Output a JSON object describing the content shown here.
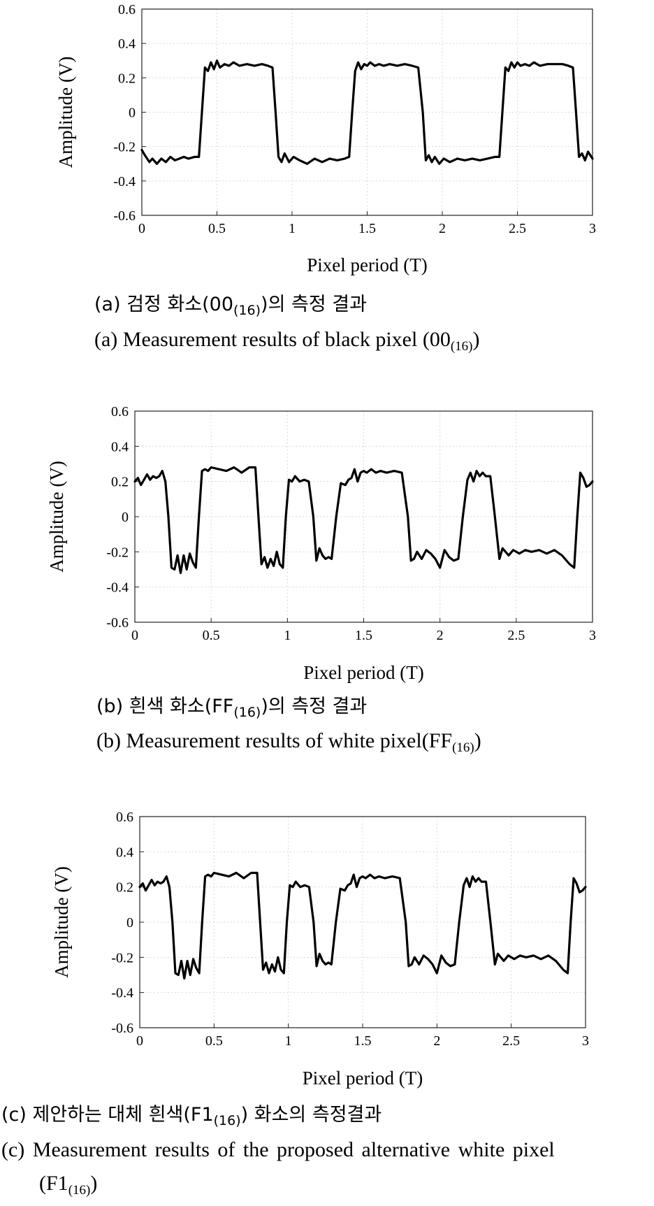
{
  "chart_data": [
    {
      "type": "line",
      "xlabel": "Pixel period (T)",
      "ylabel": "Amplitude (V)",
      "xlim": [
        0,
        3
      ],
      "ylim": [
        -0.6,
        0.6
      ],
      "xticks": [
        "0",
        "0.5",
        "1",
        "1.5",
        "2",
        "2.5",
        "3"
      ],
      "yticks": [
        "0.6",
        "0.4",
        "0.2",
        "0",
        "-0.2",
        "-0.4",
        "-0.6"
      ],
      "grid": true,
      "series": [
        {
          "x": [
            0.0,
            0.02,
            0.05,
            0.07,
            0.1,
            0.13,
            0.16,
            0.19,
            0.22,
            0.25,
            0.28,
            0.31,
            0.35,
            0.38,
            0.4,
            0.42,
            0.44,
            0.46,
            0.48,
            0.5,
            0.52,
            0.55,
            0.58,
            0.61,
            0.65,
            0.7,
            0.75,
            0.8,
            0.84,
            0.87,
            0.89,
            0.91,
            0.93,
            0.95,
            0.98,
            1.01,
            1.05,
            1.1,
            1.15,
            1.2,
            1.25,
            1.3,
            1.35,
            1.38,
            1.4,
            1.42,
            1.44,
            1.46,
            1.48,
            1.5,
            1.52,
            1.55,
            1.58,
            1.61,
            1.65,
            1.7,
            1.75,
            1.8,
            1.84,
            1.87,
            1.89,
            1.91,
            1.93,
            1.95,
            1.98,
            2.01,
            2.05,
            2.1,
            2.15,
            2.2,
            2.25,
            2.3,
            2.35,
            2.38,
            2.4,
            2.42,
            2.44,
            2.46,
            2.48,
            2.5,
            2.52,
            2.55,
            2.58,
            2.61,
            2.65,
            2.7,
            2.75,
            2.8,
            2.84,
            2.87,
            2.89,
            2.91,
            2.93,
            2.95,
            2.97,
            3.0
          ],
          "y": [
            -0.22,
            -0.25,
            -0.29,
            -0.27,
            -0.3,
            -0.27,
            -0.29,
            -0.26,
            -0.28,
            -0.27,
            -0.26,
            -0.27,
            -0.26,
            -0.26,
            0.0,
            0.26,
            0.24,
            0.29,
            0.25,
            0.3,
            0.26,
            0.28,
            0.27,
            0.29,
            0.27,
            0.28,
            0.27,
            0.28,
            0.27,
            0.26,
            0.0,
            -0.26,
            -0.29,
            -0.24,
            -0.29,
            -0.26,
            -0.28,
            -0.3,
            -0.27,
            -0.29,
            -0.27,
            -0.28,
            -0.27,
            -0.26,
            0.0,
            0.24,
            0.29,
            0.25,
            0.28,
            0.27,
            0.29,
            0.27,
            0.28,
            0.27,
            0.28,
            0.27,
            0.28,
            0.27,
            0.26,
            0.0,
            -0.28,
            -0.25,
            -0.29,
            -0.26,
            -0.3,
            -0.27,
            -0.29,
            -0.27,
            -0.28,
            -0.27,
            -0.28,
            -0.27,
            -0.26,
            -0.26,
            0.0,
            0.26,
            0.24,
            0.29,
            0.26,
            0.29,
            0.27,
            0.28,
            0.27,
            0.29,
            0.27,
            0.28,
            0.28,
            0.28,
            0.27,
            0.26,
            0.0,
            -0.26,
            -0.24,
            -0.28,
            -0.23,
            -0.27
          ]
        }
      ]
    },
    {
      "type": "line",
      "xlabel": "Pixel period (T)",
      "ylabel": "Amplitude (V)",
      "xlim": [
        0,
        3
      ],
      "ylim": [
        -0.6,
        0.6
      ],
      "xticks": [
        "0",
        "0.5",
        "1",
        "1.5",
        "2",
        "2.5",
        "3"
      ],
      "yticks": [
        "0.6",
        "0.4",
        "0.2",
        "0",
        "-0.2",
        "-0.4",
        "-0.6"
      ],
      "grid": true,
      "series": [
        {
          "x": [
            0.0,
            0.02,
            0.04,
            0.06,
            0.08,
            0.1,
            0.12,
            0.14,
            0.16,
            0.18,
            0.2,
            0.22,
            0.24,
            0.26,
            0.28,
            0.3,
            0.32,
            0.34,
            0.36,
            0.38,
            0.4,
            0.42,
            0.44,
            0.46,
            0.48,
            0.5,
            0.55,
            0.6,
            0.65,
            0.7,
            0.75,
            0.79,
            0.81,
            0.83,
            0.85,
            0.87,
            0.89,
            0.91,
            0.93,
            0.95,
            0.97,
            0.99,
            1.01,
            1.03,
            1.05,
            1.08,
            1.11,
            1.14,
            1.17,
            1.19,
            1.21,
            1.23,
            1.25,
            1.27,
            1.29,
            1.32,
            1.35,
            1.38,
            1.4,
            1.42,
            1.44,
            1.46,
            1.48,
            1.5,
            1.52,
            1.55,
            1.58,
            1.61,
            1.65,
            1.7,
            1.75,
            1.79,
            1.81,
            1.83,
            1.85,
            1.88,
            1.91,
            1.94,
            1.97,
            2.0,
            2.03,
            2.06,
            2.09,
            2.12,
            2.15,
            2.18,
            2.2,
            2.22,
            2.24,
            2.26,
            2.28,
            2.3,
            2.33,
            2.36,
            2.39,
            2.41,
            2.43,
            2.45,
            2.48,
            2.52,
            2.56,
            2.6,
            2.65,
            2.7,
            2.75,
            2.8,
            2.85,
            2.88,
            2.9,
            2.92,
            2.94,
            2.96,
            2.98,
            3.0
          ],
          "y": [
            0.2,
            0.22,
            0.18,
            0.21,
            0.24,
            0.21,
            0.23,
            0.22,
            0.23,
            0.26,
            0.2,
            0.0,
            -0.29,
            -0.3,
            -0.22,
            -0.32,
            -0.22,
            -0.3,
            -0.21,
            -0.26,
            -0.29,
            0.0,
            0.26,
            0.27,
            0.26,
            0.28,
            0.27,
            0.26,
            0.28,
            0.25,
            0.28,
            0.28,
            0.0,
            -0.27,
            -0.23,
            -0.29,
            -0.24,
            -0.28,
            -0.2,
            -0.27,
            -0.29,
            0.0,
            0.21,
            0.2,
            0.23,
            0.2,
            0.21,
            0.2,
            0.0,
            -0.25,
            -0.18,
            -0.22,
            -0.24,
            -0.23,
            -0.24,
            0.0,
            0.19,
            0.18,
            0.21,
            0.22,
            0.27,
            0.2,
            0.25,
            0.26,
            0.25,
            0.27,
            0.25,
            0.26,
            0.25,
            0.26,
            0.25,
            0.0,
            -0.25,
            -0.24,
            -0.2,
            -0.24,
            -0.19,
            -0.21,
            -0.24,
            -0.29,
            -0.19,
            -0.23,
            -0.25,
            -0.24,
            0.0,
            0.21,
            0.25,
            0.2,
            0.26,
            0.23,
            0.25,
            0.23,
            0.23,
            0.0,
            -0.24,
            -0.18,
            -0.2,
            -0.22,
            -0.19,
            -0.21,
            -0.19,
            -0.2,
            -0.19,
            -0.21,
            -0.19,
            -0.22,
            -0.27,
            -0.29,
            0.0,
            0.25,
            0.22,
            0.17,
            0.18,
            0.2
          ]
        }
      ]
    },
    {
      "type": "line",
      "xlabel": "Pixel period (T)",
      "ylabel": "Amplitude (V)",
      "xlim": [
        0,
        3
      ],
      "ylim": [
        -0.6,
        0.6
      ],
      "xticks": [
        "0",
        "0.5",
        "1",
        "1.5",
        "2",
        "2.5",
        "3"
      ],
      "yticks": [
        "0.6",
        "0.4",
        "0.2",
        "0",
        "-0.2",
        "-0.4",
        "-0.6"
      ],
      "grid": true,
      "series": [
        {
          "x": [
            0.0,
            0.02,
            0.04,
            0.06,
            0.08,
            0.1,
            0.12,
            0.14,
            0.16,
            0.18,
            0.2,
            0.22,
            0.24,
            0.26,
            0.28,
            0.3,
            0.32,
            0.34,
            0.36,
            0.38,
            0.4,
            0.42,
            0.44,
            0.46,
            0.48,
            0.5,
            0.55,
            0.6,
            0.65,
            0.7,
            0.75,
            0.79,
            0.81,
            0.83,
            0.85,
            0.87,
            0.89,
            0.91,
            0.93,
            0.95,
            0.97,
            0.99,
            1.01,
            1.03,
            1.05,
            1.08,
            1.11,
            1.14,
            1.17,
            1.19,
            1.21,
            1.23,
            1.25,
            1.27,
            1.29,
            1.32,
            1.35,
            1.38,
            1.4,
            1.42,
            1.44,
            1.46,
            1.48,
            1.5,
            1.52,
            1.55,
            1.58,
            1.61,
            1.65,
            1.7,
            1.75,
            1.79,
            1.81,
            1.83,
            1.85,
            1.88,
            1.91,
            1.94,
            1.97,
            2.0,
            2.03,
            2.06,
            2.09,
            2.12,
            2.15,
            2.18,
            2.2,
            2.22,
            2.24,
            2.26,
            2.28,
            2.3,
            2.33,
            2.36,
            2.39,
            2.41,
            2.43,
            2.45,
            2.48,
            2.52,
            2.56,
            2.6,
            2.65,
            2.7,
            2.75,
            2.8,
            2.85,
            2.88,
            2.9,
            2.92,
            2.94,
            2.96,
            2.98,
            3.0
          ],
          "y": [
            0.2,
            0.22,
            0.18,
            0.21,
            0.24,
            0.21,
            0.23,
            0.22,
            0.23,
            0.26,
            0.2,
            0.0,
            -0.29,
            -0.3,
            -0.22,
            -0.32,
            -0.22,
            -0.3,
            -0.21,
            -0.26,
            -0.29,
            0.0,
            0.26,
            0.27,
            0.26,
            0.28,
            0.27,
            0.26,
            0.28,
            0.25,
            0.28,
            0.28,
            0.0,
            -0.27,
            -0.23,
            -0.29,
            -0.24,
            -0.28,
            -0.2,
            -0.27,
            -0.29,
            0.0,
            0.21,
            0.2,
            0.23,
            0.2,
            0.21,
            0.2,
            0.0,
            -0.25,
            -0.18,
            -0.22,
            -0.24,
            -0.23,
            -0.24,
            0.0,
            0.19,
            0.18,
            0.21,
            0.22,
            0.27,
            0.2,
            0.25,
            0.26,
            0.25,
            0.27,
            0.25,
            0.26,
            0.25,
            0.26,
            0.25,
            0.0,
            -0.25,
            -0.24,
            -0.2,
            -0.24,
            -0.19,
            -0.21,
            -0.24,
            -0.29,
            -0.19,
            -0.23,
            -0.25,
            -0.24,
            0.0,
            0.21,
            0.25,
            0.2,
            0.26,
            0.23,
            0.25,
            0.23,
            0.23,
            0.0,
            -0.24,
            -0.18,
            -0.2,
            -0.22,
            -0.19,
            -0.21,
            -0.19,
            -0.2,
            -0.19,
            -0.21,
            -0.19,
            -0.22,
            -0.27,
            -0.29,
            0.0,
            0.25,
            0.22,
            0.17,
            0.18,
            0.2
          ]
        }
      ]
    }
  ],
  "captions": {
    "a": {
      "kr_pre": "(a) 검정 화소(00",
      "kr_sub": "(16)",
      "kr_post": ")의 측정 결과",
      "en_pre": "(a) Measurement results of black pixel (00",
      "en_sub": "(16)",
      "en_post": ")"
    },
    "b": {
      "kr_pre": "(b) 흰색 화소(FF",
      "kr_sub": "(16)",
      "kr_post": ")의 측정 결과",
      "en_pre": "(b) Measurement results of white pixel(FF",
      "en_sub": "(16)",
      "en_post": ")"
    },
    "c": {
      "kr_pre": "(c) 제안하는 대체 흰색(F1",
      "kr_sub": "(16)",
      "kr_post": ") 화소의 측정결과",
      "en_line1": "(c) Measurement results of the proposed alternative white pixel",
      "en_pre": "(F1",
      "en_sub": "(16)",
      "en_post": ")"
    }
  }
}
